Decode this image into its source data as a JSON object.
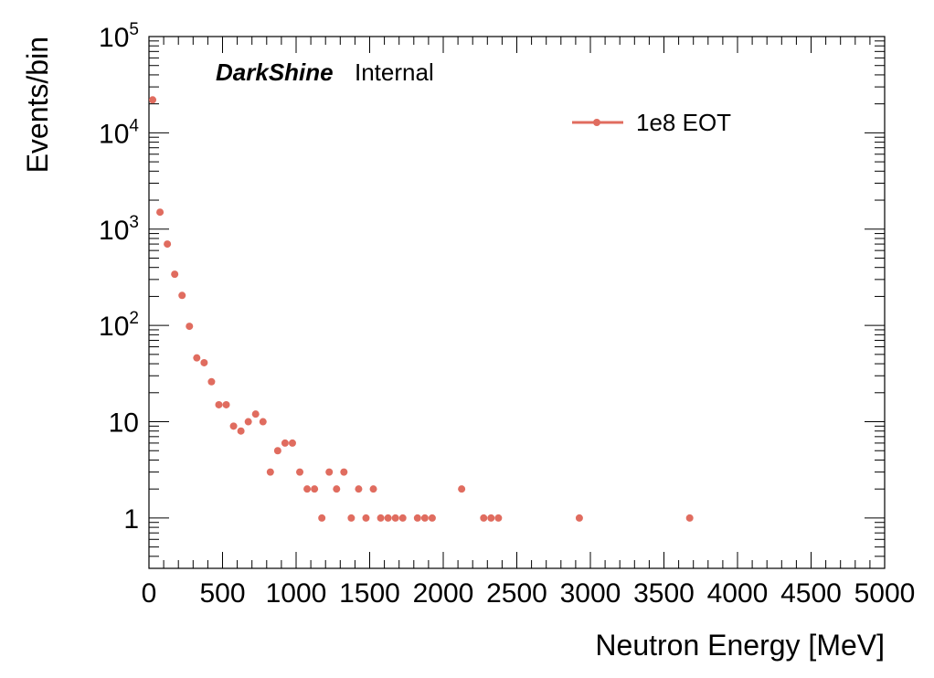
{
  "chart_data": {
    "type": "scatter",
    "title": "",
    "xlabel": "Neutron Energy [MeV]",
    "ylabel": "Events/bin",
    "xlim": [
      0,
      5000
    ],
    "ylim": [
      0.3,
      100000
    ],
    "yscale": "log",
    "grid": false,
    "legend_position": "top-right",
    "x_ticks": [
      {
        "value": 0,
        "label": "0"
      },
      {
        "value": 500,
        "label": "500"
      },
      {
        "value": 1000,
        "label": "1000"
      },
      {
        "value": 1500,
        "label": "1500"
      },
      {
        "value": 2000,
        "label": "2000"
      },
      {
        "value": 2500,
        "label": "2500"
      },
      {
        "value": 3000,
        "label": "3000"
      },
      {
        "value": 3500,
        "label": "3500"
      },
      {
        "value": 4000,
        "label": "4000"
      },
      {
        "value": 4500,
        "label": "4500"
      },
      {
        "value": 5000,
        "label": "5000"
      }
    ],
    "y_ticks": [
      {
        "value": 1,
        "base": "1",
        "exp": ""
      },
      {
        "value": 10,
        "base": "10",
        "exp": ""
      },
      {
        "value": 100,
        "base": "10",
        "exp": "2"
      },
      {
        "value": 1000,
        "base": "10",
        "exp": "3"
      },
      {
        "value": 10000,
        "base": "10",
        "exp": "4"
      },
      {
        "value": 100000,
        "base": "10",
        "exp": "5"
      }
    ],
    "series": [
      {
        "name": "1e8 EOT",
        "color": "#e06c5f",
        "x": [
          25,
          75,
          125,
          175,
          225,
          275,
          325,
          375,
          425,
          475,
          525,
          575,
          625,
          675,
          725,
          775,
          825,
          875,
          925,
          975,
          1025,
          1075,
          1125,
          1175,
          1225,
          1275,
          1325,
          1375,
          1425,
          1475,
          1525,
          1575,
          1625,
          1675,
          1725,
          1825,
          1875,
          1925,
          2125,
          2275,
          2325,
          2375,
          2925,
          3675
        ],
        "values": [
          22000,
          1500,
          700,
          340,
          205,
          98,
          46,
          41,
          26,
          15,
          15,
          9,
          8,
          10,
          12,
          10,
          3,
          5,
          6,
          6,
          3,
          2,
          2,
          1,
          3,
          2,
          3,
          1,
          2,
          1,
          2,
          1,
          1,
          1,
          1,
          1,
          1,
          1,
          2,
          1,
          1,
          1,
          1,
          1
        ]
      }
    ]
  },
  "annotation": {
    "brand": "DarkShine",
    "tag": "Internal"
  },
  "legend": {
    "label": "1e8 EOT"
  }
}
